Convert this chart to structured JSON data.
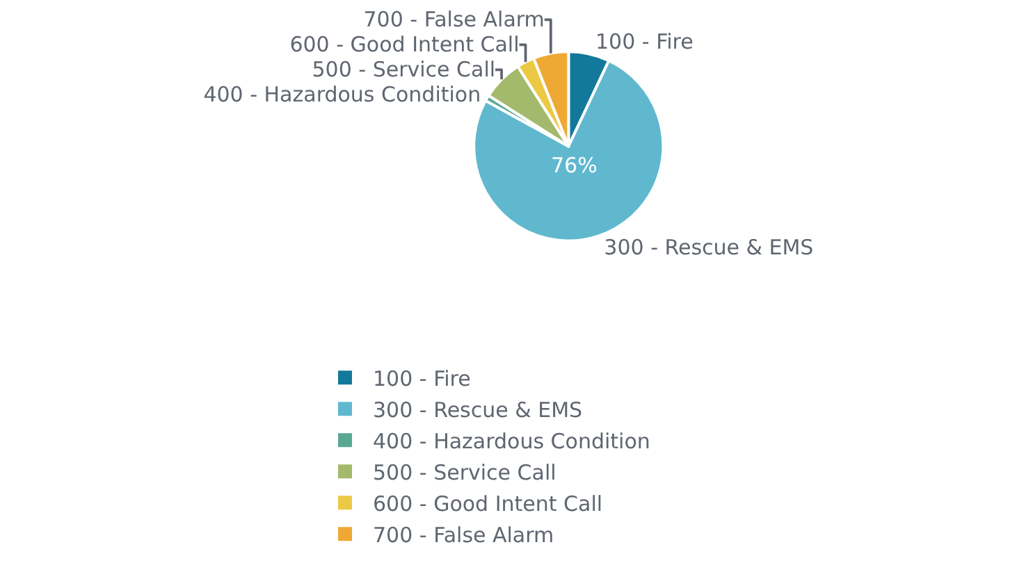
{
  "chart_data": {
    "type": "pie",
    "categories": [
      "100 - Fire",
      "300 - Rescue & EMS",
      "400 - Hazardous Condition",
      "500 - Service Call",
      "600 - Good Intent Call",
      "700 - False Alarm"
    ],
    "values": [
      7,
      76,
      1,
      7,
      3,
      6
    ],
    "colors": [
      "#13799a",
      "#60b8cf",
      "#5aa893",
      "#a3b96b",
      "#ecc945",
      "#eea935"
    ],
    "value_labels": [
      null,
      "76%",
      null,
      null,
      null,
      null
    ],
    "legend": "bottom"
  }
}
